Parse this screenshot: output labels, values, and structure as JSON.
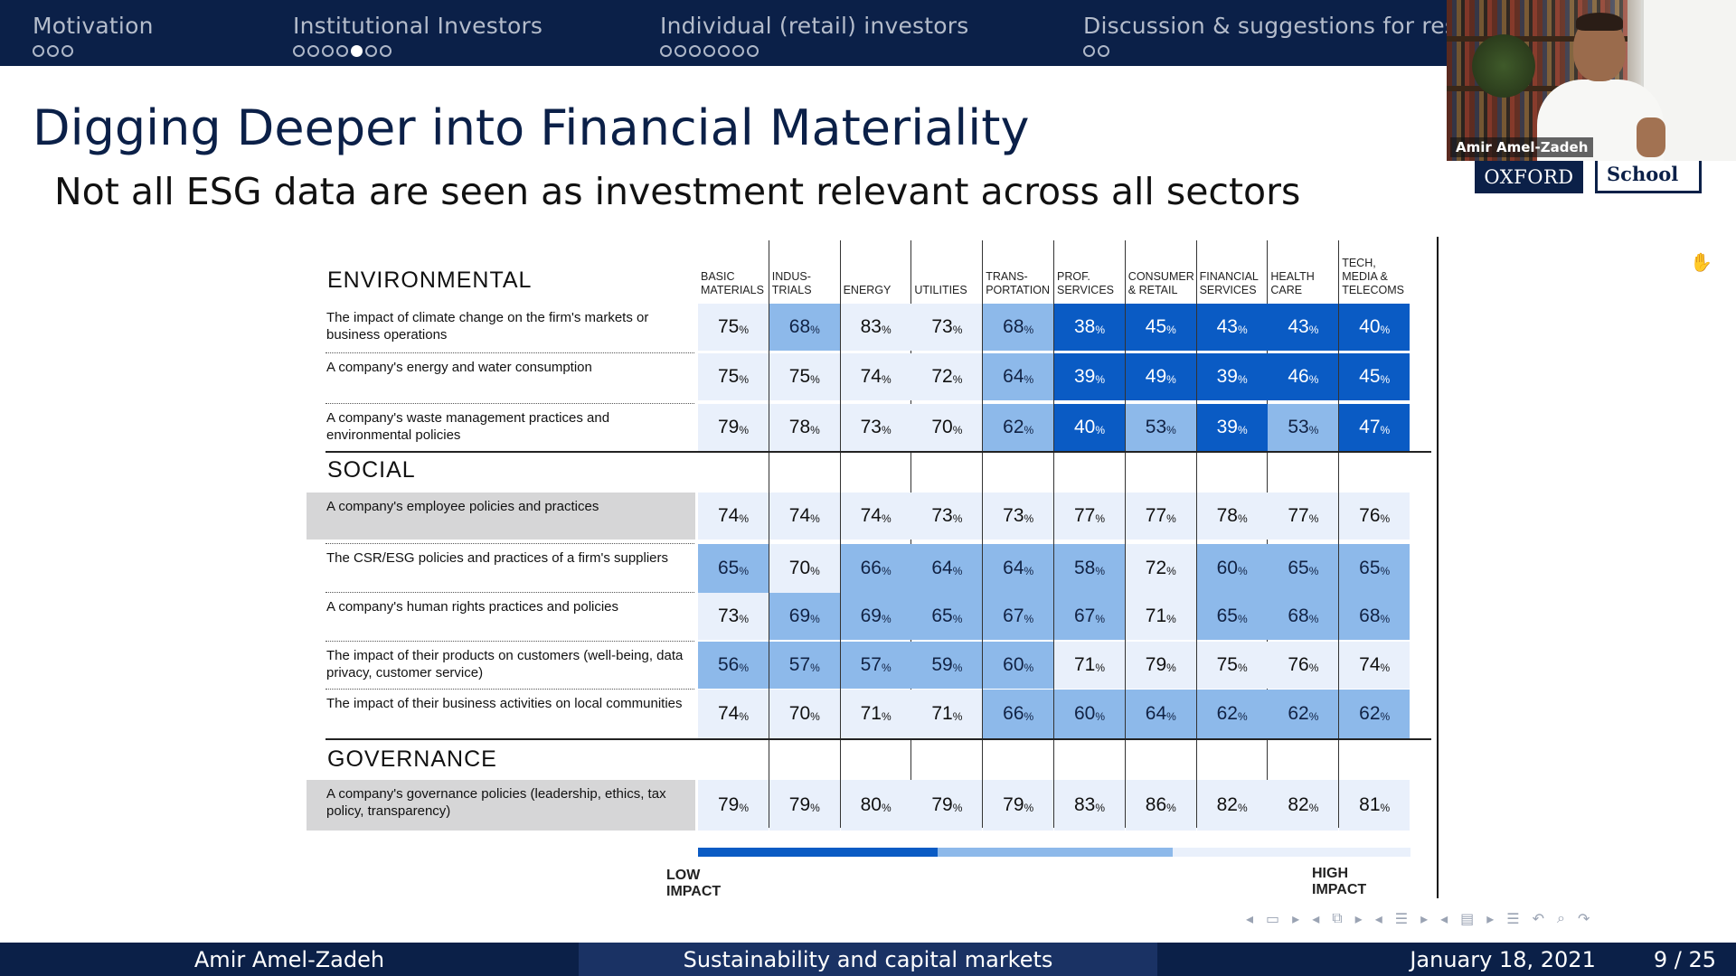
{
  "nav": {
    "sections": [
      {
        "title": "Motivation",
        "dots": 3,
        "filled": -1
      },
      {
        "title": "Institutional Investors",
        "dots": 7,
        "filled": 4
      },
      {
        "title": "Individual (retail) investors",
        "dots": 7,
        "filled": -1
      },
      {
        "title": "Discussion & suggestions for research",
        "dots": 2,
        "filled": -1
      }
    ]
  },
  "video": {
    "participant_name": "Amir Amel-Zadeh"
  },
  "logo": {
    "oxford": "OXFORD",
    "school": "School"
  },
  "slide": {
    "title": "Digging Deeper into Financial Materiality",
    "subtitle": "Not all ESG data are seen as investment relevant across all sectors"
  },
  "table": {
    "columns": [
      "BASIC MATERIALS",
      "INDUS- TRIALS",
      "ENERGY",
      "UTILITIES",
      "TRANS- PORTATION",
      "PROF. SERVICES",
      "CONSUMER & RETAIL",
      "FINANCIAL SERVICES",
      "HEALTH CARE",
      "TECH, MEDIA & TELECOMS"
    ],
    "sections": [
      {
        "name": "ENVIRONMENTAL",
        "rows": [
          {
            "label": "The impact of climate change on the firm's markets or business operations",
            "shaded": false,
            "values": [
              75,
              68,
              83,
              73,
              68,
              38,
              45,
              43,
              43,
              40
            ],
            "levels": [
              0,
              1,
              0,
              0,
              1,
              2,
              2,
              2,
              2,
              2
            ]
          },
          {
            "label": "A company's energy and water consumption",
            "shaded": false,
            "values": [
              75,
              75,
              74,
              72,
              64,
              39,
              49,
              39,
              46,
              45
            ],
            "levels": [
              0,
              0,
              0,
              0,
              1,
              2,
              2,
              2,
              2,
              2
            ]
          },
          {
            "label": "A company's waste management practices and environmental policies",
            "shaded": false,
            "values": [
              79,
              78,
              73,
              70,
              62,
              40,
              53,
              39,
              53,
              47
            ],
            "levels": [
              0,
              0,
              0,
              0,
              1,
              2,
              1,
              2,
              1,
              2
            ]
          }
        ]
      },
      {
        "name": "SOCIAL",
        "rows": [
          {
            "label": "A company's employee policies and practices",
            "shaded": true,
            "values": [
              74,
              74,
              74,
              73,
              73,
              77,
              77,
              78,
              77,
              76
            ],
            "levels": [
              0,
              0,
              0,
              0,
              0,
              0,
              0,
              0,
              0,
              0
            ]
          },
          {
            "label": "The CSR/ESG policies and practices of a firm's suppliers",
            "shaded": false,
            "values": [
              65,
              70,
              66,
              64,
              64,
              58,
              72,
              60,
              65,
              65
            ],
            "levels": [
              1,
              0,
              1,
              1,
              1,
              1,
              0,
              1,
              1,
              1
            ]
          },
          {
            "label": "A company's human rights practices and policies",
            "shaded": false,
            "values": [
              73,
              69,
              69,
              65,
              67,
              67,
              71,
              65,
              68,
              68
            ],
            "levels": [
              0,
              1,
              1,
              1,
              1,
              1,
              0,
              1,
              1,
              1
            ]
          },
          {
            "label": "The impact of their products on customers (well-being, data privacy, customer service)",
            "shaded": false,
            "values": [
              56,
              57,
              57,
              59,
              60,
              71,
              79,
              75,
              76,
              74
            ],
            "levels": [
              1,
              1,
              1,
              1,
              1,
              0,
              0,
              0,
              0,
              0
            ]
          },
          {
            "label": "The impact of their business activities on local communities",
            "shaded": false,
            "values": [
              74,
              70,
              71,
              71,
              66,
              60,
              64,
              62,
              62,
              62
            ],
            "levels": [
              0,
              0,
              0,
              0,
              1,
              1,
              1,
              1,
              1,
              1
            ]
          }
        ]
      },
      {
        "name": "GOVERNANCE",
        "rows": [
          {
            "label": "A company's governance policies (leadership, ethics, tax policy, transparency)",
            "shaded": true,
            "values": [
              79,
              79,
              80,
              79,
              79,
              83,
              86,
              82,
              82,
              81
            ],
            "levels": [
              0,
              0,
              0,
              0,
              0,
              0,
              0,
              0,
              0,
              0
            ]
          }
        ]
      }
    ],
    "percent_sign": "%",
    "legend": {
      "low": "LOW IMPACT",
      "high": "HIGH IMPACT"
    },
    "level_colors": {
      "0": "#e9f0fb",
      "1": "#8db9ea",
      "2": "#0a5bc4"
    }
  },
  "footer": {
    "author": "Amir Amel-Zadeh",
    "title": "Sustainability and capital markets",
    "date": "January 18, 2021",
    "page": "9 / 25"
  },
  "icons": {
    "nav_controls": [
      "arrow-left-icon",
      "frame-icon",
      "arrow-right-icon",
      "arrow-left-icon",
      "subsection-icon",
      "arrow-right-icon",
      "arrow-left-icon",
      "section-icon",
      "arrow-right-icon",
      "arrow-left-icon",
      "appendix-icon",
      "arrow-right-icon",
      "align-icon",
      "undo-icon",
      "search-icon",
      "redo-icon"
    ],
    "cursor": "hand-cursor-icon"
  }
}
